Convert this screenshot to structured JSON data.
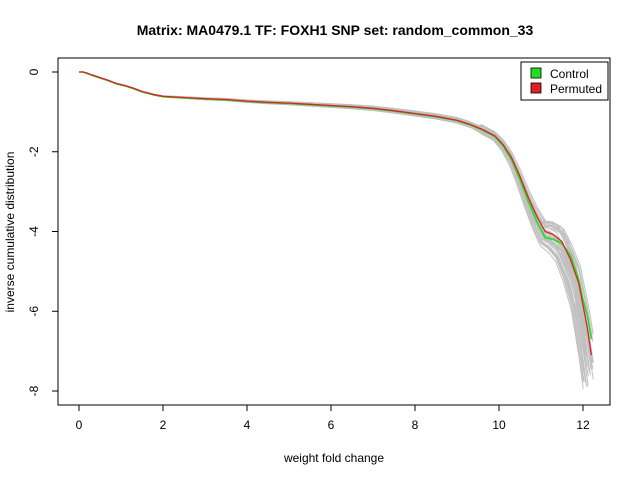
{
  "chart_data": {
    "type": "line",
    "title": "Matrix: MA0479.1 TF: FOXH1 SNP set: random_common_33",
    "xlabel": "weight fold change",
    "ylabel": "inverse cumulative distribution",
    "xlim": [
      -0.6,
      12.8
    ],
    "ylim": [
      -8.2,
      0.3
    ],
    "xticks": [
      0,
      2,
      4,
      6,
      8,
      10,
      12
    ],
    "yticks": [
      0,
      -2,
      -4,
      -6,
      -8
    ],
    "grid": false,
    "legend_position": "top-right",
    "background_series_color": "#c0c0c0",
    "legend": [
      {
        "label": "Control",
        "color": "#22dd22"
      },
      {
        "label": "Permuted",
        "color": "#dd2222"
      }
    ],
    "series": [
      {
        "name": "Control",
        "color": "#22dd22",
        "x": [
          0.0,
          0.1,
          0.2,
          0.3,
          0.5,
          0.7,
          0.9,
          1.1,
          1.3,
          1.5,
          1.8,
          2.0,
          2.5,
          3.0,
          3.5,
          4.0,
          4.5,
          5.0,
          5.5,
          6.0,
          6.5,
          7.0,
          7.5,
          8.0,
          8.5,
          9.0,
          9.3,
          9.6,
          9.9,
          10.1,
          10.3,
          10.5,
          10.7,
          10.9,
          11.1,
          11.3,
          11.5,
          11.7,
          11.9,
          12.0,
          12.1,
          12.2
        ],
        "values": [
          0.0,
          0.0,
          -0.04,
          -0.08,
          -0.15,
          -0.22,
          -0.3,
          -0.35,
          -0.42,
          -0.5,
          -0.58,
          -0.62,
          -0.65,
          -0.68,
          -0.7,
          -0.74,
          -0.77,
          -0.79,
          -0.82,
          -0.85,
          -0.88,
          -0.92,
          -0.98,
          -1.05,
          -1.12,
          -1.22,
          -1.32,
          -1.45,
          -1.62,
          -1.85,
          -2.2,
          -2.7,
          -3.25,
          -3.75,
          -4.15,
          -4.2,
          -4.3,
          -4.6,
          -5.2,
          -5.7,
          -6.1,
          -6.7
        ]
      },
      {
        "name": "Permuted",
        "color": "#dd2222",
        "x": [
          0.0,
          0.1,
          0.2,
          0.3,
          0.5,
          0.7,
          0.9,
          1.1,
          1.3,
          1.5,
          1.8,
          2.0,
          2.5,
          3.0,
          3.5,
          4.0,
          4.5,
          5.0,
          5.5,
          6.0,
          6.5,
          7.0,
          7.5,
          8.0,
          8.5,
          9.0,
          9.3,
          9.6,
          9.9,
          10.1,
          10.3,
          10.5,
          10.7,
          10.9,
          11.1,
          11.3,
          11.5,
          11.7,
          11.9,
          12.0,
          12.1,
          12.2
        ],
        "values": [
          0.0,
          0.0,
          -0.03,
          -0.07,
          -0.14,
          -0.21,
          -0.29,
          -0.34,
          -0.41,
          -0.49,
          -0.57,
          -0.61,
          -0.64,
          -0.67,
          -0.69,
          -0.73,
          -0.76,
          -0.78,
          -0.81,
          -0.84,
          -0.87,
          -0.91,
          -0.97,
          -1.04,
          -1.11,
          -1.21,
          -1.31,
          -1.44,
          -1.6,
          -1.82,
          -2.15,
          -2.62,
          -3.15,
          -3.62,
          -4.0,
          -4.08,
          -4.25,
          -4.7,
          -5.3,
          -5.85,
          -6.4,
          -7.1
        ]
      }
    ]
  }
}
